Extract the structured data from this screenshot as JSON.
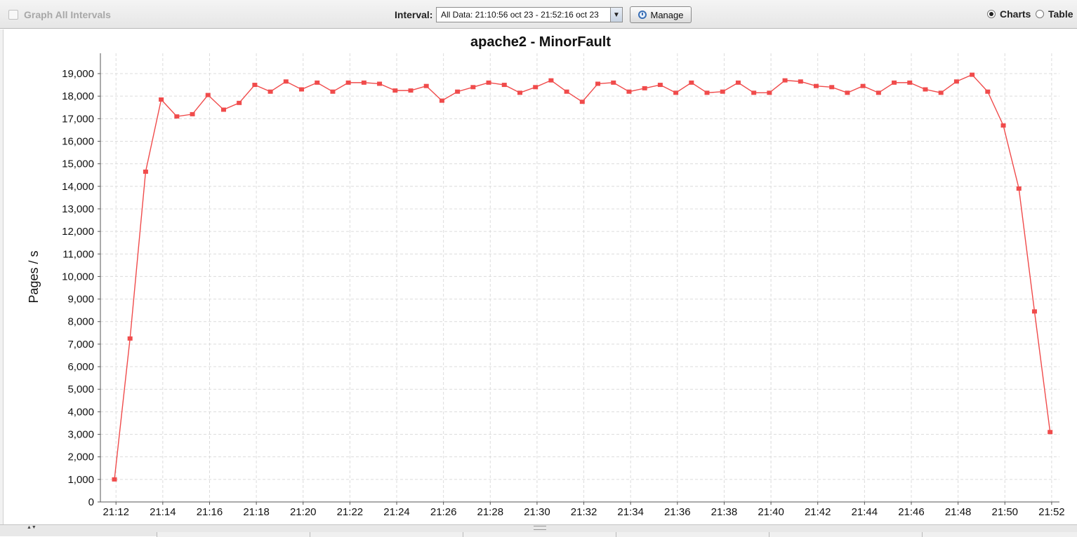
{
  "toolbar": {
    "graph_all_label": "Graph All Intervals",
    "interval_label": "Interval:",
    "interval_value": "All Data: 21:10:56 oct 23 - 21:52:16 oct 23",
    "manage_label": "Manage",
    "charts_label": "Charts",
    "table_label": "Table",
    "view_selected": "Charts"
  },
  "chart_data": {
    "type": "line",
    "title": "apache2 - MinorFault",
    "xlabel": "",
    "ylabel": "Pages / s",
    "ylim": [
      0,
      19000
    ],
    "yticks": [
      0,
      1000,
      2000,
      3000,
      4000,
      5000,
      6000,
      7000,
      8000,
      9000,
      10000,
      11000,
      12000,
      13000,
      14000,
      15000,
      16000,
      17000,
      18000,
      19000
    ],
    "ytick_labels": [
      "0",
      "1,000",
      "2,000",
      "3,000",
      "4,000",
      "5,000",
      "6,000",
      "7,000",
      "8,000",
      "9,000",
      "10,000",
      "11,000",
      "12,000",
      "13,000",
      "14,000",
      "15,000",
      "16,000",
      "17,000",
      "18,000",
      "19,000"
    ],
    "xlim": [
      "21:11:20",
      "21:52:20"
    ],
    "xtick_labels": [
      "21:12",
      "21:14",
      "21:16",
      "21:18",
      "21:20",
      "21:22",
      "21:24",
      "21:26",
      "21:28",
      "21:30",
      "21:32",
      "21:34",
      "21:36",
      "21:38",
      "21:40",
      "21:42",
      "21:44",
      "21:46",
      "21:48",
      "21:50",
      "21:52"
    ],
    "grid": true,
    "color": "#f04b4b",
    "series": [
      {
        "x": [
          "21:11:56",
          "21:12:36",
          "21:13:16",
          "21:13:56",
          "21:14:36",
          "21:15:16",
          "21:15:56",
          "21:16:36",
          "21:17:16",
          "21:17:56",
          "21:18:36",
          "21:19:16",
          "21:19:56",
          "21:20:36",
          "21:21:16",
          "21:21:56",
          "21:22:36",
          "21:23:16",
          "21:23:56",
          "21:24:36",
          "21:25:16",
          "21:25:56",
          "21:26:36",
          "21:27:16",
          "21:27:56",
          "21:28:36",
          "21:29:16",
          "21:29:56",
          "21:30:36",
          "21:31:16",
          "21:31:56",
          "21:32:36",
          "21:33:16",
          "21:33:56",
          "21:34:36",
          "21:35:16",
          "21:35:56",
          "21:36:36",
          "21:37:16",
          "21:37:56",
          "21:38:36",
          "21:39:16",
          "21:39:56",
          "21:40:36",
          "21:41:16",
          "21:41:56",
          "21:42:36",
          "21:43:16",
          "21:43:56",
          "21:44:36",
          "21:45:16",
          "21:45:56",
          "21:46:36",
          "21:47:16",
          "21:47:56",
          "21:48:36",
          "21:49:16",
          "21:49:56",
          "21:50:36",
          "21:51:16",
          "21:51:56"
        ],
        "values": [
          1000,
          7250,
          14650,
          17850,
          17100,
          17200,
          18050,
          17400,
          17700,
          18500,
          18200,
          18650,
          18300,
          18600,
          18200,
          18600,
          18600,
          18550,
          18250,
          18250,
          18450,
          17800,
          18200,
          18400,
          18600,
          18500,
          18150,
          18400,
          18700,
          18200,
          17750,
          18550,
          18600,
          18200,
          18350,
          18500,
          18150,
          18600,
          18150,
          18200,
          18600,
          18150,
          18150,
          18700,
          18650,
          18450,
          18400,
          18150,
          18450,
          18150,
          18600,
          18600,
          18300,
          18150,
          18650,
          18950,
          18200,
          16700,
          13900,
          8450,
          3100
        ]
      }
    ]
  },
  "bottom": {
    "split_arrows": "▲▼"
  }
}
